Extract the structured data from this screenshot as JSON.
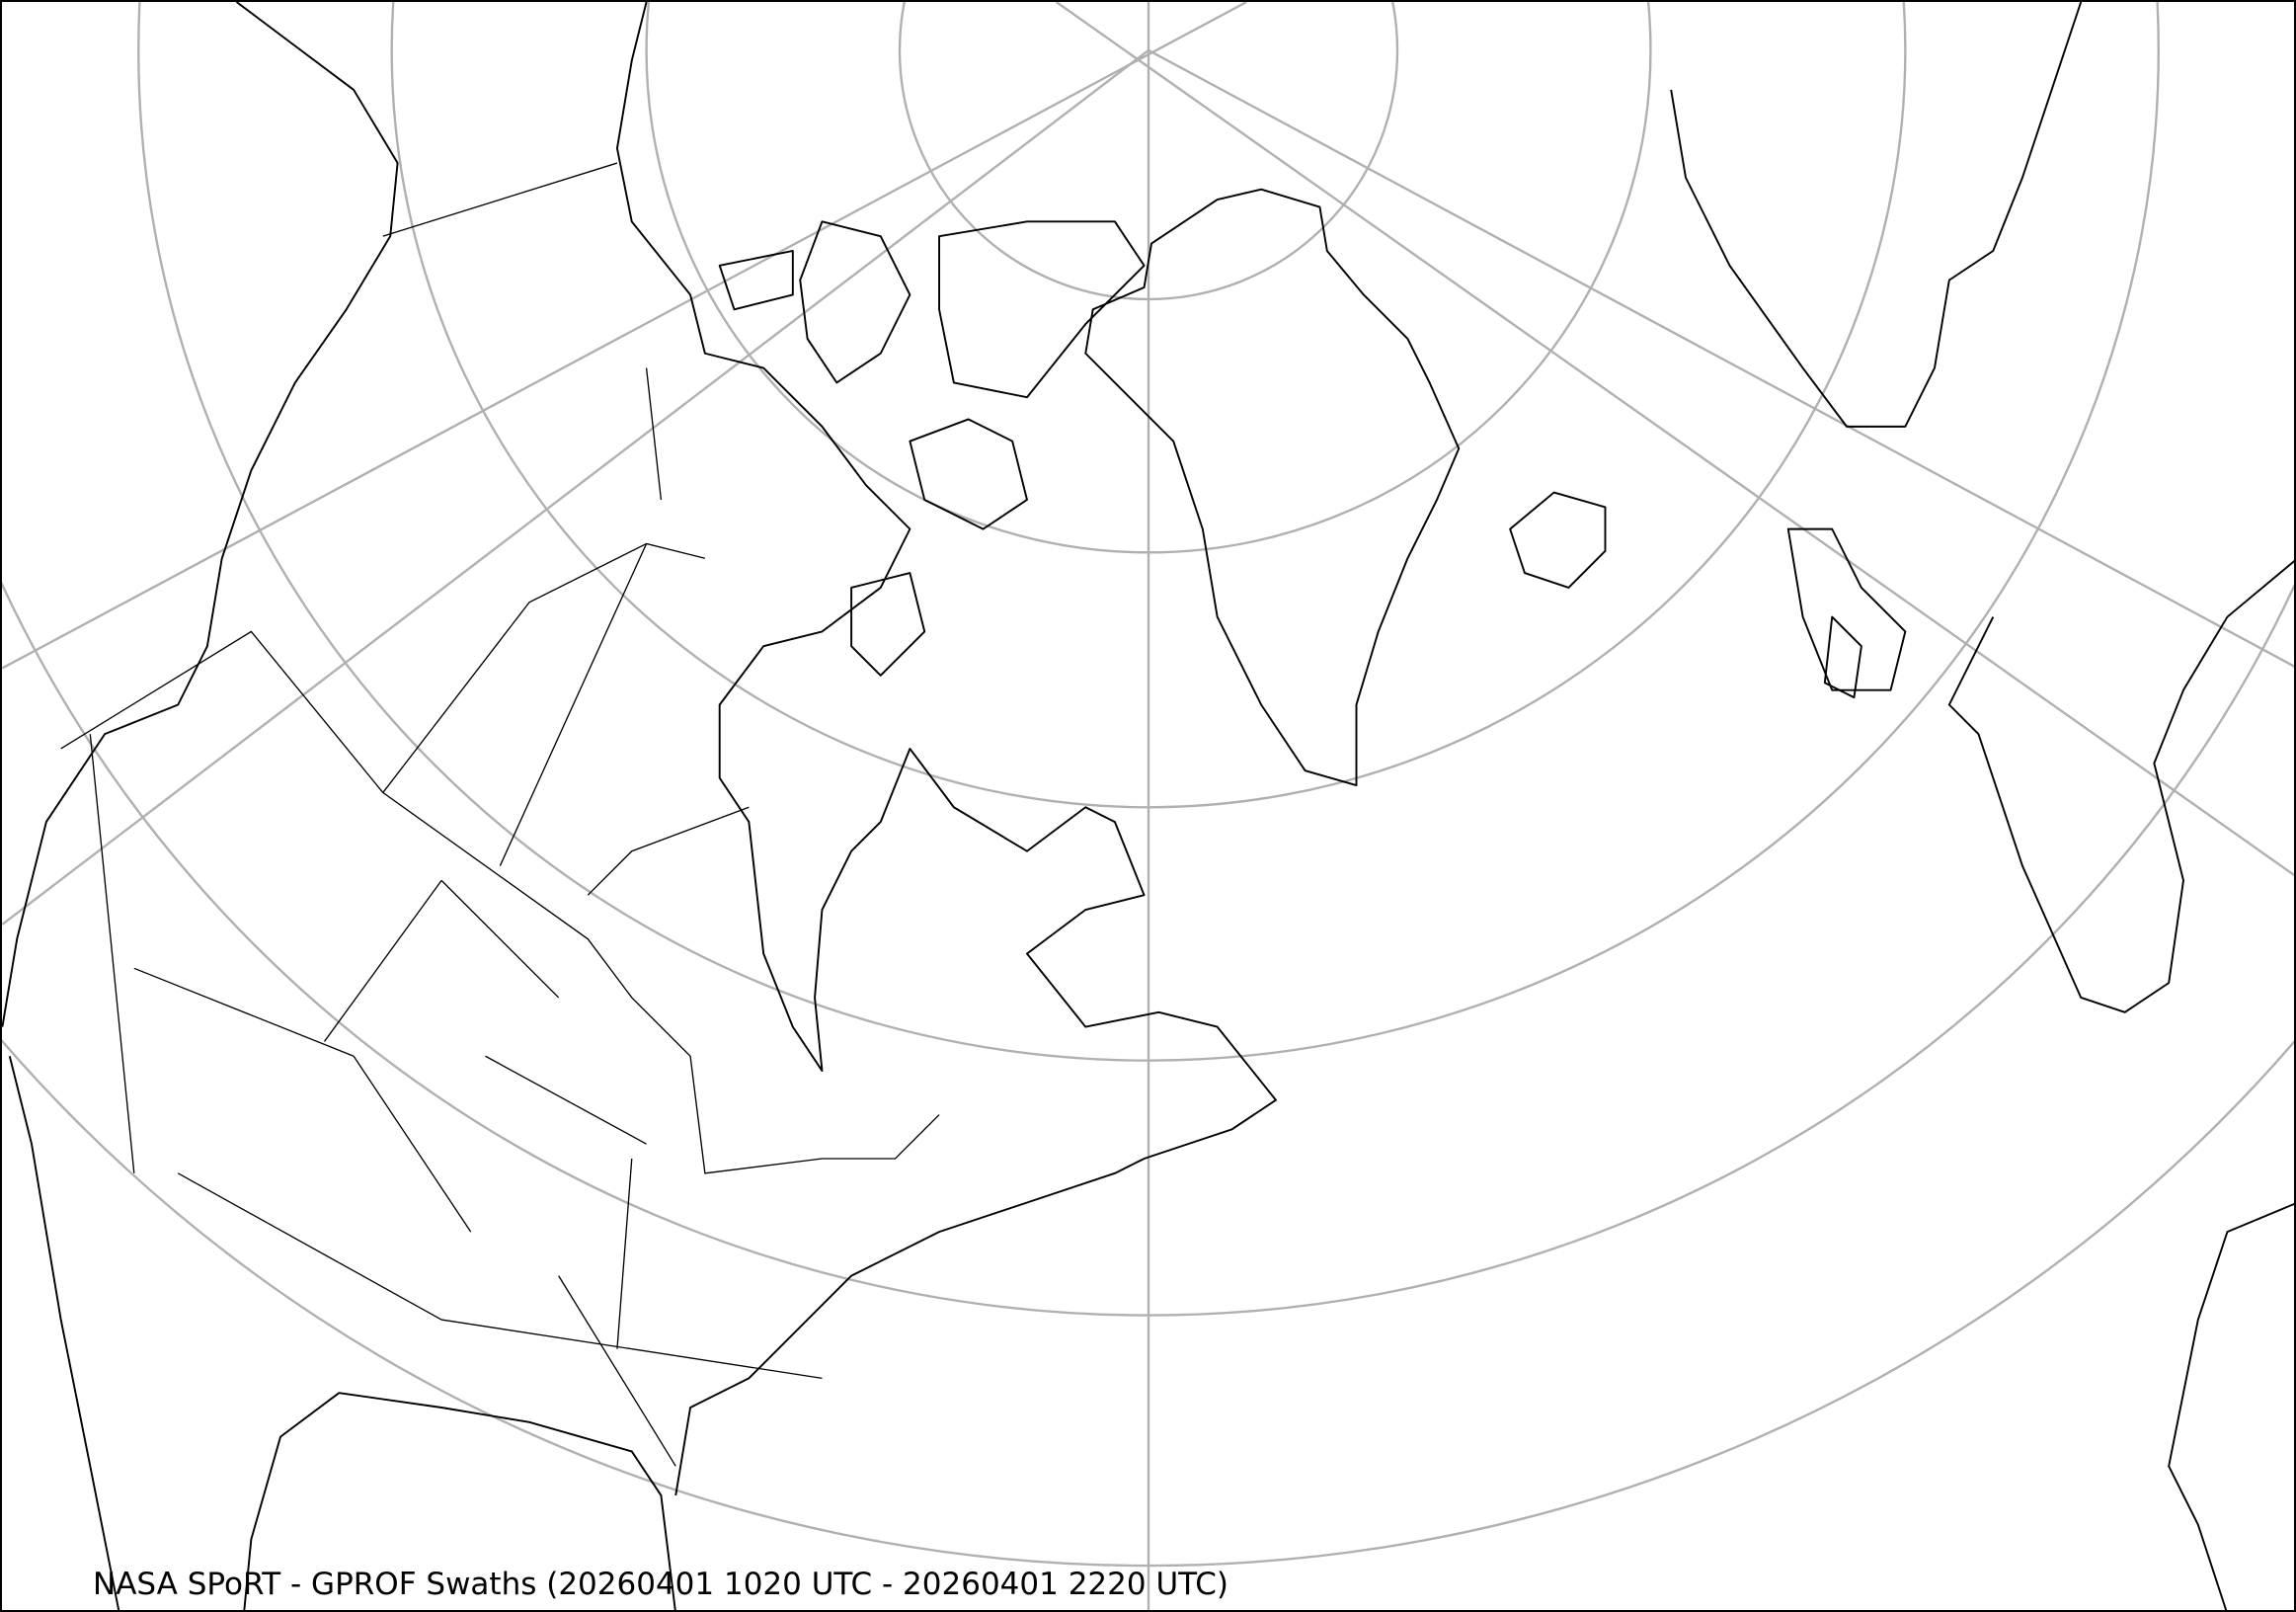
{
  "map": {
    "title": "NASA SPoRT - GPROF Swaths (20260401 1020 UTC - 20260401 2220 UTC)",
    "projection": "polar conic, North Atlantic / North America",
    "colors": {
      "graticule": "#b0b0b0",
      "coastline": "#000000",
      "background": "#ffffff"
    }
  }
}
